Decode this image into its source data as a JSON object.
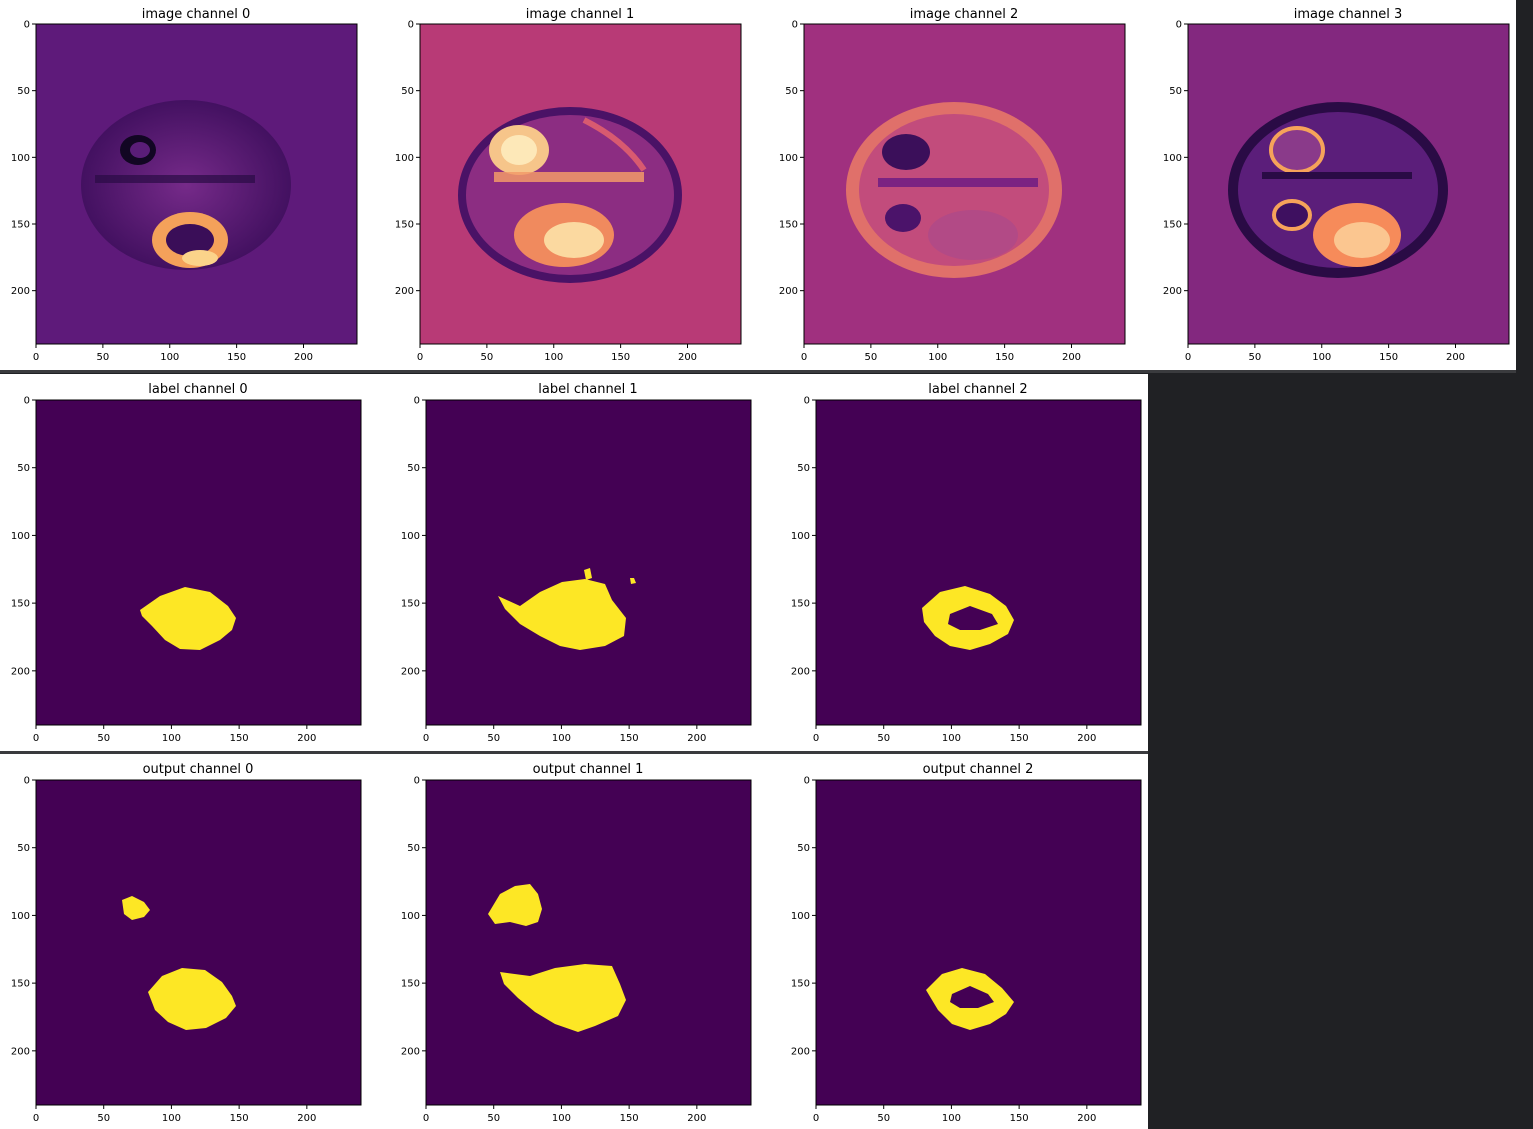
{
  "colors": {
    "label_background": "#440154",
    "label_foreground": "#fde725",
    "page_background": "#202124"
  },
  "rows": [
    {
      "name": "image",
      "plots": [
        {
          "title": "image channel 0",
          "colormap": "magma",
          "background_color": "#5e1a7a",
          "xticks": [
            "0",
            "50",
            "100",
            "150",
            "200"
          ],
          "yticks": [
            "0",
            "50",
            "100",
            "150",
            "200"
          ]
        },
        {
          "title": "image channel 1",
          "colormap": "magma",
          "background_color": "#b83a76",
          "xticks": [
            "0",
            "50",
            "100",
            "150",
            "200"
          ],
          "yticks": [
            "0",
            "50",
            "100",
            "150",
            "200"
          ]
        },
        {
          "title": "image channel 2",
          "colormap": "magma",
          "background_color": "#a0307f",
          "xticks": [
            "0",
            "50",
            "100",
            "150",
            "200"
          ],
          "yticks": [
            "0",
            "50",
            "100",
            "150",
            "200"
          ]
        },
        {
          "title": "image channel 3",
          "colormap": "magma",
          "background_color": "#83287f",
          "xticks": [
            "0",
            "50",
            "100",
            "150",
            "200"
          ],
          "yticks": [
            "0",
            "50",
            "100",
            "150",
            "200"
          ]
        }
      ]
    },
    {
      "name": "label",
      "plots": [
        {
          "title": "label channel 0",
          "colormap": "viridis",
          "xticks": [
            "0",
            "50",
            "100",
            "150",
            "200"
          ],
          "yticks": [
            "0",
            "50",
            "100",
            "150",
            "200"
          ]
        },
        {
          "title": "label channel 1",
          "colormap": "viridis",
          "xticks": [
            "0",
            "50",
            "100",
            "150",
            "200"
          ],
          "yticks": [
            "0",
            "50",
            "100",
            "150",
            "200"
          ]
        },
        {
          "title": "label channel 2",
          "colormap": "viridis",
          "xticks": [
            "0",
            "50",
            "100",
            "150",
            "200"
          ],
          "yticks": [
            "0",
            "50",
            "100",
            "150",
            "200"
          ]
        }
      ]
    },
    {
      "name": "output",
      "plots": [
        {
          "title": "output channel 0",
          "colormap": "viridis",
          "xticks": [
            "0",
            "50",
            "100",
            "150",
            "200"
          ],
          "yticks": [
            "0",
            "50",
            "100",
            "150",
            "200"
          ]
        },
        {
          "title": "output channel 1",
          "colormap": "viridis",
          "xticks": [
            "0",
            "50",
            "100",
            "150",
            "200"
          ],
          "yticks": [
            "0",
            "50",
            "100",
            "150",
            "200"
          ]
        },
        {
          "title": "output channel 2",
          "colormap": "viridis",
          "xticks": [
            "0",
            "50",
            "100",
            "150",
            "200"
          ],
          "yticks": [
            "0",
            "50",
            "100",
            "150",
            "200"
          ]
        }
      ]
    }
  ]
}
